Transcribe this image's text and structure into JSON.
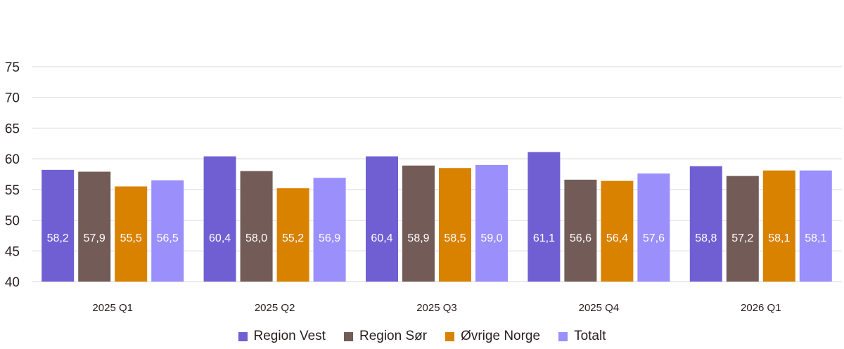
{
  "chart_data": {
    "type": "bar",
    "categories": [
      "2025 Q1",
      "2025 Q2",
      "2025 Q3",
      "2025 Q4",
      "2026 Q1"
    ],
    "series": [
      {
        "name": "Region Vest",
        "color": "#6f5fd3",
        "values": [
          58.2,
          60.4,
          60.4,
          61.1,
          58.8
        ],
        "labels": [
          "58,2",
          "60,4",
          "60,4",
          "61,1",
          "58,8"
        ]
      },
      {
        "name": "Region Sør",
        "color": "#735c58",
        "values": [
          57.9,
          58.0,
          58.9,
          56.6,
          57.2
        ],
        "labels": [
          "57,9",
          "58,0",
          "58,9",
          "56,6",
          "57,2"
        ]
      },
      {
        "name": "Øvrige Norge",
        "color": "#d98200",
        "values": [
          55.5,
          55.2,
          58.5,
          56.4,
          58.1
        ],
        "labels": [
          "55,5",
          "55,2",
          "58,5",
          "56,4",
          "58,1"
        ]
      },
      {
        "name": "Totalt",
        "color": "#9a8ffb",
        "values": [
          56.5,
          56.9,
          59.0,
          57.6,
          58.1
        ],
        "labels": [
          "56,5",
          "56,9",
          "59,0",
          "57,6",
          "58,1"
        ]
      }
    ],
    "ylim": [
      40,
      75
    ],
    "yticks": [
      "40",
      "45",
      "50",
      "55",
      "60",
      "65",
      "70",
      "75"
    ],
    "grid": true,
    "legend_position": "bottom",
    "title": "",
    "xlabel": "",
    "ylabel": ""
  }
}
